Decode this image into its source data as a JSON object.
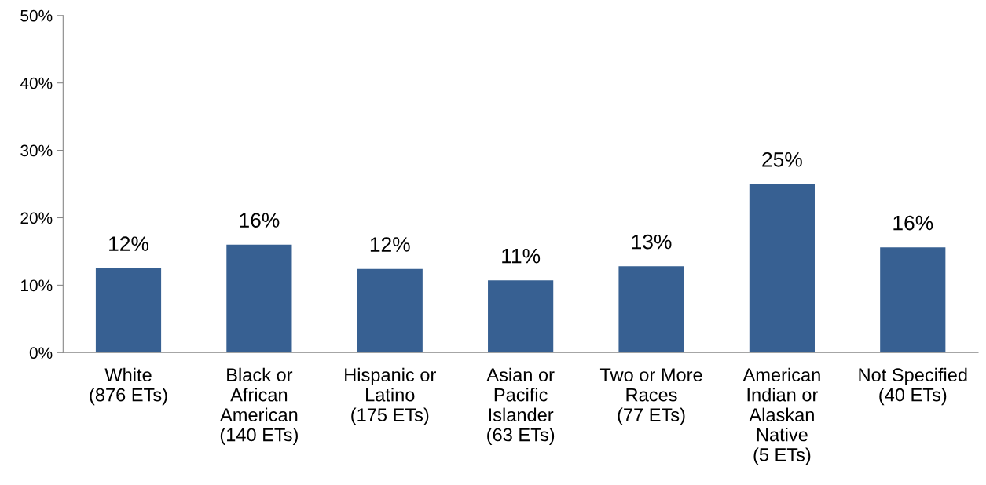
{
  "chart_data": {
    "type": "bar",
    "categories": [
      "White\n(876 ETs)",
      "Black or\nAfrican\nAmerican\n(140 ETs)",
      "Hispanic or\nLatino\n(175 ETs)",
      "Asian or\nPacific\nIslander\n(63 ETs)",
      "Two or More\nRaces\n(77 ETs)",
      "American\nIndian or\nAlaskan\nNative\n(5 ETs)",
      "Not Specified\n(40 ETs)"
    ],
    "values": [
      12.5,
      16.0,
      12.4,
      10.7,
      12.8,
      25,
      15.6
    ],
    "value_labels": [
      "12%",
      "16%",
      "12%",
      "11%",
      "13%",
      "25%",
      "16%"
    ],
    "color": "#376092",
    "ylim": [
      0,
      50
    ],
    "yticks": [
      {
        "value": 0,
        "label": "0%"
      },
      {
        "value": 10,
        "label": "10%"
      },
      {
        "value": 20,
        "label": "20%"
      },
      {
        "value": 30,
        "label": "30%"
      },
      {
        "value": 40,
        "label": "40%"
      },
      {
        "value": 50,
        "label": "50%"
      }
    ],
    "grid": false
  }
}
